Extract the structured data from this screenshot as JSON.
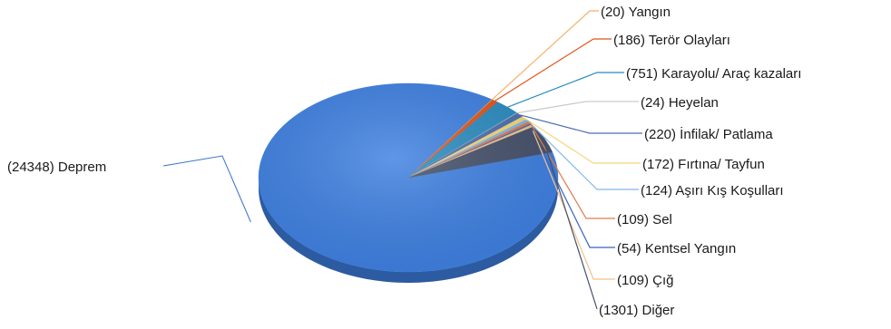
{
  "chart_data": {
    "type": "pie",
    "title": "",
    "label_format": "({value}) {category}",
    "categories": [
      "Deprem",
      "Yangın",
      "Terör Olayları",
      "Karayolu/ Araç kazaları",
      "Heyelan",
      "İnfilak/ Patlama",
      "Fırtına/ Tayfun",
      "Aşırı Kış Koşulları",
      "Sel",
      "Kentsel Yangın",
      "Çığ",
      "Diğer"
    ],
    "values": [
      24348,
      20,
      186,
      751,
      24,
      220,
      172,
      124,
      109,
      54,
      109,
      1301
    ],
    "labels": [
      "(24348) Deprem",
      "(20) Yangın",
      "(186) Terör Olayları",
      "(751) Karayolu/ Araç kazaları",
      "(24) Heyelan",
      "(220) İnfilak/ Patlama",
      "(172) Fırtına/ Tayfun",
      "(124) Aşırı Kış Koşulları",
      "(109) Sel",
      "(54) Kentsel Yangın",
      "(109) Çığ",
      "(1301) Diğer"
    ],
    "colors": [
      "#3d7fe0",
      "#f4b26a",
      "#e0551a",
      "#2a8bc0",
      "#c9c9c9",
      "#4a6fb0",
      "#f5d77a",
      "#7fb8e8",
      "#e07a4a",
      "#3a62c0",
      "#f2c28a",
      "#44506a"
    ],
    "legend": "none",
    "style": "3d-pie"
  }
}
